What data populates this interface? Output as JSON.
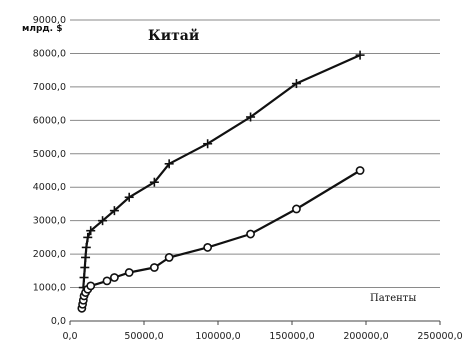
{
  "chart_data": {
    "type": "line",
    "title": "Китай",
    "xlabel": "Патенты",
    "ylabel": "млрд. $",
    "xlim": [
      0,
      250000
    ],
    "ylim": [
      0,
      9000
    ],
    "x_ticks": [
      0,
      50000,
      100000,
      150000,
      200000,
      250000
    ],
    "y_ticks": [
      0,
      1000,
      2000,
      3000,
      4000,
      5000,
      6000,
      7000,
      8000,
      9000
    ],
    "x_tick_labels": [
      "0,0",
      "50000,0",
      "100000,0",
      "150000,0",
      "200000,0",
      "250000,0"
    ],
    "y_tick_labels": [
      "0,0",
      "1000,0",
      "2000,0",
      "3000,0",
      "4000,0",
      "5000,0",
      "6000,0",
      "7000,0",
      "8000,0",
      "9000,0"
    ],
    "grid": "horizontal",
    "series": [
      {
        "marker": "plus",
        "color": "#111111",
        "points": [
          [
            9000,
            1000
          ],
          [
            9500,
            1300
          ],
          [
            10000,
            1600
          ],
          [
            10500,
            1900
          ],
          [
            11000,
            2200
          ],
          [
            12000,
            2500
          ],
          [
            14000,
            2700
          ],
          [
            22000,
            3000
          ],
          [
            30000,
            3300
          ],
          [
            40000,
            3700
          ],
          [
            57000,
            4150
          ],
          [
            67000,
            4700
          ],
          [
            93000,
            5300
          ],
          [
            122000,
            6100
          ],
          [
            153000,
            7100
          ],
          [
            196000,
            7950
          ]
        ]
      },
      {
        "marker": "circle",
        "color": "#111111",
        "points": [
          [
            8000,
            380
          ],
          [
            8500,
            500
          ],
          [
            9000,
            620
          ],
          [
            9500,
            750
          ],
          [
            10500,
            850
          ],
          [
            12000,
            950
          ],
          [
            14000,
            1050
          ],
          [
            25000,
            1200
          ],
          [
            30000,
            1300
          ],
          [
            40000,
            1450
          ],
          [
            57000,
            1600
          ],
          [
            67000,
            1900
          ],
          [
            93000,
            2200
          ],
          [
            122000,
            2600
          ],
          [
            153000,
            3350
          ],
          [
            196000,
            4500
          ]
        ]
      }
    ]
  }
}
